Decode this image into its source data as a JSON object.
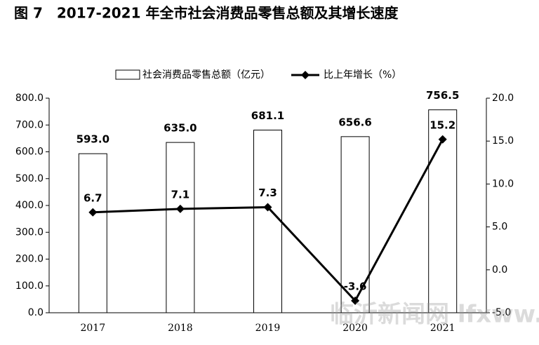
{
  "chart_data": {
    "type": "combo",
    "title": "图 7　2017-2021 年全市社会消费品零售总额及其增长速度",
    "categories": [
      "2017",
      "2018",
      "2019",
      "2020",
      "2021"
    ],
    "series": [
      {
        "name": "社会消费品零售总额（亿元）",
        "type": "bar",
        "axis": "y",
        "color": "#ffffff",
        "values": [
          593.0,
          635.0,
          681.1,
          656.6,
          756.5
        ],
        "value_labels": [
          "593.0",
          "635.0",
          "681.1",
          "656.6",
          "756.5"
        ]
      },
      {
        "name": "比上年增长（%）",
        "type": "line",
        "axis": "y2",
        "color": "#000000",
        "values": [
          6.7,
          7.1,
          7.3,
          -3.6,
          15.2
        ]
      }
    ],
    "ylim": [
      0,
      800
    ],
    "yticks": [
      {
        "value": 0,
        "label": "0.0"
      },
      {
        "value": 100,
        "label": "100.0"
      },
      {
        "value": 200,
        "label": "200.0"
      },
      {
        "value": 300,
        "label": "300.0"
      },
      {
        "value": 400,
        "label": "400.0"
      },
      {
        "value": 500,
        "label": "500.0"
      },
      {
        "value": 600,
        "label": "600.0"
      },
      {
        "value": 700,
        "label": "700.0"
      },
      {
        "value": 800,
        "label": "800.0"
      }
    ],
    "y2lim": [
      -5,
      20
    ],
    "y2ticks": [
      {
        "value": -5,
        "label": "-5.0"
      },
      {
        "value": 0,
        "label": "0.0"
      },
      {
        "value": 5,
        "label": "5.0"
      },
      {
        "value": 10,
        "label": "10.0"
      },
      {
        "value": 15,
        "label": "15.0"
      },
      {
        "value": 20,
        "label": "20.0"
      }
    ],
    "watermark": "临沂新闻网 lfxww.com"
  }
}
